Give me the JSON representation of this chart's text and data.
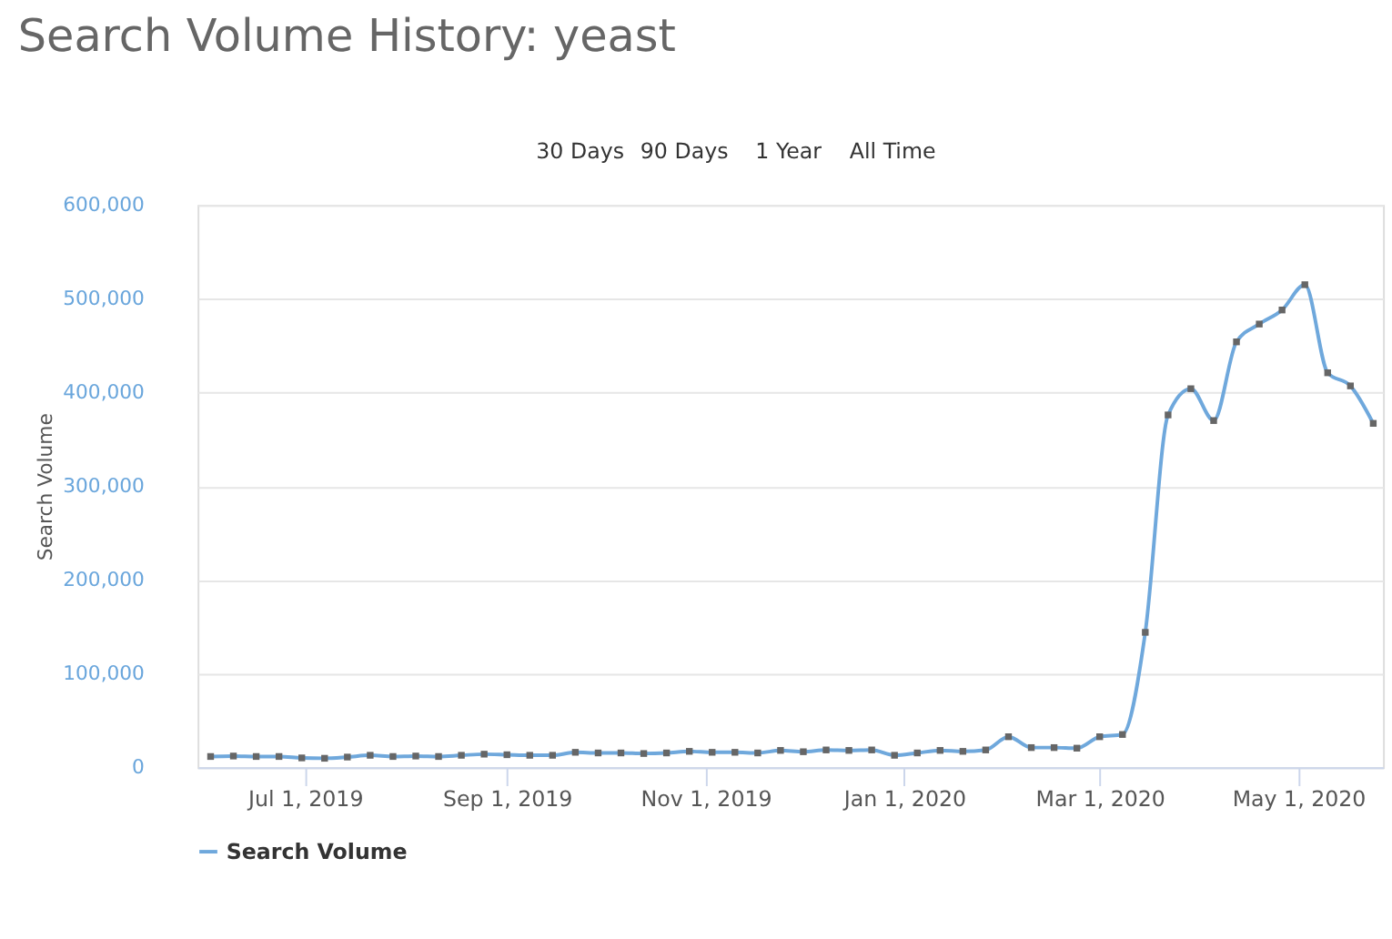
{
  "chart_data": {
    "type": "line",
    "title": "Search Volume History: yeast",
    "annotations": [
      "30 Days",
      "90 Days",
      "1 Year",
      "All Time"
    ],
    "ylabel": "Search Volume",
    "x": [
      "2019-06-02",
      "2019-06-09",
      "2019-06-16",
      "2019-06-23",
      "2019-06-30",
      "2019-07-07",
      "2019-07-14",
      "2019-07-21",
      "2019-07-28",
      "2019-08-04",
      "2019-08-11",
      "2019-08-18",
      "2019-08-25",
      "2019-09-01",
      "2019-09-08",
      "2019-09-15",
      "2019-09-22",
      "2019-09-29",
      "2019-10-06",
      "2019-10-13",
      "2019-10-20",
      "2019-10-27",
      "2019-11-03",
      "2019-11-10",
      "2019-11-17",
      "2019-11-24",
      "2019-12-01",
      "2019-12-08",
      "2019-12-15",
      "2019-12-22",
      "2019-12-29",
      "2020-01-05",
      "2020-01-12",
      "2020-01-19",
      "2020-01-26",
      "2020-02-02",
      "2020-02-09",
      "2020-02-16",
      "2020-02-23",
      "2020-03-01",
      "2020-03-08",
      "2020-03-15",
      "2020-03-22",
      "2020-03-29",
      "2020-04-05",
      "2020-04-12",
      "2020-04-19",
      "2020-04-26",
      "2020-05-03",
      "2020-05-10",
      "2020-05-17",
      "2020-05-24"
    ],
    "series": [
      {
        "name": "Search Volume",
        "color": "#6fa8dc",
        "values": [
          11500,
          12000,
          11500,
          11500,
          10000,
          9600,
          10900,
          12800,
          11500,
          12000,
          11500,
          12800,
          14000,
          13400,
          12800,
          12800,
          16000,
          15300,
          15300,
          14700,
          15300,
          17000,
          16000,
          16000,
          15300,
          18000,
          16600,
          18500,
          18000,
          18500,
          12800,
          15300,
          18000,
          17000,
          18500,
          32600,
          21000,
          21000,
          20400,
          32600,
          35000,
          144000,
          376000,
          404000,
          370000,
          454000,
          473000,
          488000,
          515000,
          421000,
          407000,
          367000
        ]
      }
    ],
    "xlim": [
      "2019-05-29",
      "2020-05-27"
    ],
    "xticks": [
      {
        "value": "2019-07-01",
        "label": "Jul 1, 2019"
      },
      {
        "value": "2019-09-01",
        "label": "Sep 1, 2019"
      },
      {
        "value": "2019-11-01",
        "label": "Nov 1, 2019"
      },
      {
        "value": "2020-01-01",
        "label": "Jan 1, 2020"
      },
      {
        "value": "2020-03-01",
        "label": "Mar 1, 2020"
      },
      {
        "value": "2020-05-01",
        "label": "May 1, 2020"
      }
    ],
    "ylim": [
      0,
      600000
    ],
    "yticks": [
      {
        "value": 0,
        "label": "0"
      },
      {
        "value": 100000,
        "label": "100,000"
      },
      {
        "value": 200000,
        "label": "200,000"
      },
      {
        "value": 300000,
        "label": "300,000"
      },
      {
        "value": 400000,
        "label": "400,000"
      },
      {
        "value": 500000,
        "label": "500,000"
      },
      {
        "value": 600000,
        "label": "600,000"
      }
    ],
    "grid": "y",
    "legend": "bottom",
    "marker": "square",
    "line_style": "solid"
  }
}
